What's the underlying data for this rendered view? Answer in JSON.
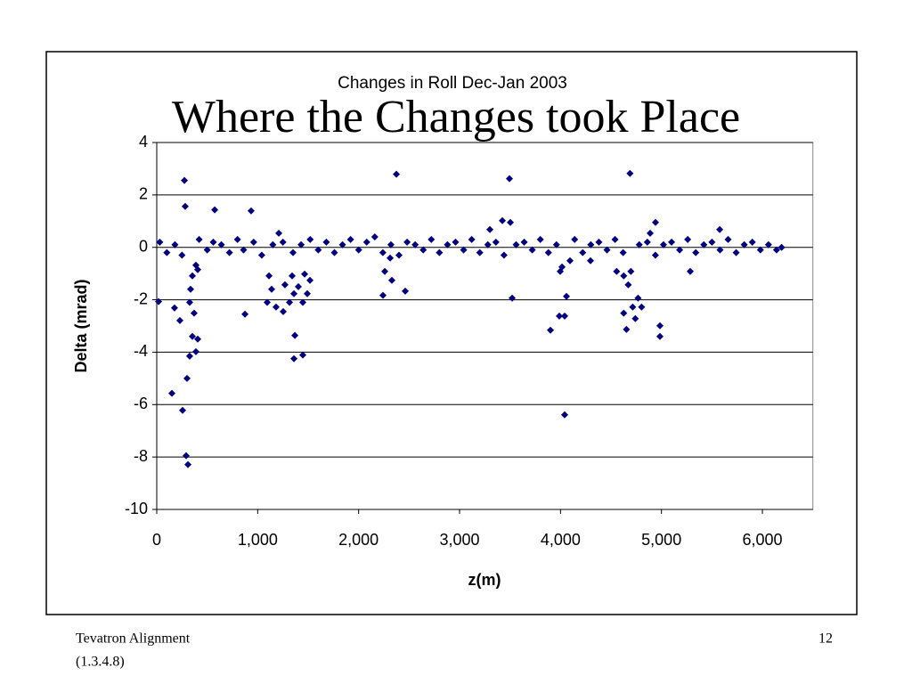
{
  "slide_title": "Where the Changes took Place",
  "footer": {
    "left": [
      "Tevatron Alignment",
      "(1.3.4.8)"
    ],
    "page": "12"
  },
  "chart_data": {
    "type": "scatter",
    "title": "Changes in Roll Dec-Jan 2003",
    "x_label": "z(m)",
    "y_label": "Delta (mrad)",
    "color": "#000080",
    "grid": true,
    "xlim": [
      0,
      6500
    ],
    "ylim": [
      -10,
      4
    ],
    "xticks": [
      0,
      {
        "value": 1000,
        "label": "1,000"
      },
      {
        "value": 2000,
        "label": "2,000"
      },
      {
        "value": 3000,
        "label": "3,000"
      },
      {
        "value": 4000,
        "label": "4,000"
      },
      {
        "value": 5000,
        "label": "5,000"
      },
      {
        "value": 6000,
        "label": "6,000"
      }
    ],
    "yticks": [
      -10,
      -8,
      -6,
      -4,
      -2,
      0,
      2,
      4
    ],
    "x": [
      274,
      282,
      18,
      150,
      256,
      291,
      309,
      300,
      326,
      388,
      406,
      353,
      370,
      229,
      176,
      326,
      335,
      353,
      388,
      406,
      574,
      935,
      874,
      1094,
      1138,
      1182,
      1253,
      1315,
      1359,
      1403,
      1270,
      1341,
      1447,
      1491,
      1518,
      1465,
      1368,
      1359,
      1447,
      1112,
      1209,
      2374,
      2241,
      2259,
      2329,
      2462,
      2312,
      3494,
      3521,
      3424,
      3503,
      3300,
      3900,
      3988,
      4041,
      4041,
      4059,
      3997,
      4015,
      4688,
      4626,
      4653,
      4715,
      4741,
      4671,
      4697,
      4768,
      4803,
      4626,
      4556,
      4985,
      4985,
      4941,
      4888,
      5285,
      5577,
      4094,
      4297,
      30,
      100,
      180,
      250,
      420,
      500,
      560,
      640,
      720,
      800,
      860,
      960,
      1040,
      1150,
      1250,
      1350,
      1430,
      1520,
      1600,
      1680,
      1760,
      1840,
      1920,
      2000,
      2080,
      2160,
      2240,
      2320,
      2400,
      2480,
      2560,
      2640,
      2720,
      2800,
      2880,
      2960,
      3040,
      3120,
      3200,
      3280,
      3360,
      3440,
      3560,
      3640,
      3720,
      3800,
      3880,
      3960,
      4140,
      4220,
      4300,
      4380,
      4460,
      4540,
      4620,
      4780,
      4860,
      4940,
      5020,
      5100,
      5180,
      5260,
      5340,
      5420,
      5500,
      5580,
      5660,
      5740,
      5820,
      5900,
      5980,
      6060,
      6140,
      6190
    ],
    "y": [
      2.55,
      1.56,
      -2.07,
      -5.57,
      -6.22,
      -7.95,
      -8.29,
      -5.0,
      -4.15,
      -3.98,
      -3.5,
      -3.4,
      -2.51,
      -2.79,
      -2.31,
      -2.1,
      -1.6,
      -1.09,
      -0.68,
      -0.85,
      1.43,
      1.39,
      -2.55,
      -2.1,
      -1.6,
      -2.28,
      -2.45,
      -2.1,
      -1.77,
      -1.5,
      -1.43,
      -1.09,
      -2.1,
      -1.77,
      -1.26,
      -1.02,
      -3.36,
      -4.25,
      -4.11,
      -1.09,
      0.54,
      2.79,
      -1.83,
      -0.92,
      -1.26,
      -1.67,
      -0.41,
      2.62,
      -1.94,
      1.02,
      0.95,
      0.68,
      -3.16,
      -2.62,
      -2.62,
      -6.39,
      -1.87,
      -0.92,
      -0.75,
      2.82,
      -2.51,
      -3.13,
      -2.28,
      -2.72,
      -1.43,
      -0.92,
      -1.94,
      -2.28,
      -1.09,
      -0.92,
      -2.99,
      -3.4,
      0.95,
      0.54,
      -0.92,
      0.68,
      -0.51,
      -0.51,
      0.2,
      -0.2,
      0.1,
      -0.3,
      0.3,
      -0.1,
      0.2,
      0.1,
      -0.2,
      0.3,
      -0.1,
      0.2,
      -0.3,
      0.1,
      0.2,
      -0.2,
      0.1,
      0.3,
      -0.1,
      0.2,
      -0.2,
      0.1,
      0.3,
      -0.1,
      0.2,
      0.4,
      -0.2,
      0.1,
      -0.3,
      0.2,
      0.1,
      -0.1,
      0.3,
      -0.2,
      0.1,
      0.2,
      -0.1,
      0.3,
      -0.2,
      0.1,
      0.2,
      -0.3,
      0.1,
      0.2,
      -0.1,
      0.3,
      -0.2,
      0.1,
      0.3,
      -0.2,
      0.1,
      0.2,
      -0.1,
      0.3,
      -0.2,
      0.1,
      0.2,
      -0.3,
      0.1,
      0.2,
      -0.1,
      0.3,
      -0.2,
      0.1,
      0.2,
      -0.1,
      0.3,
      -0.2,
      0.1,
      0.2,
      -0.1,
      0.1,
      -0.1,
      0.0
    ]
  }
}
